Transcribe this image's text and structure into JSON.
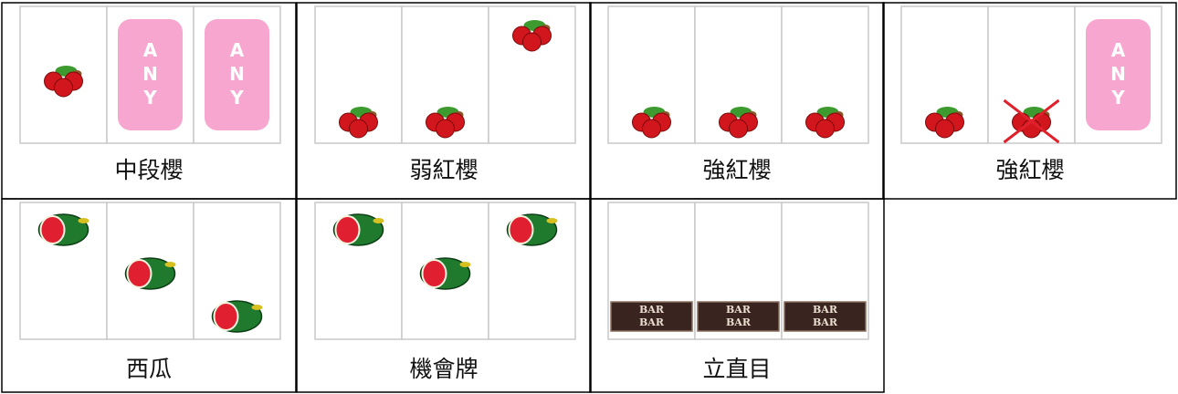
{
  "cells": [
    {
      "label": "中段櫻"
    },
    {
      "label": "弱紅櫻"
    },
    {
      "label": "強紅櫻"
    },
    {
      "label": "強紅櫻"
    },
    {
      "label": "西瓜"
    },
    {
      "label": "機會牌"
    },
    {
      "label": "立直目"
    }
  ],
  "symbols": {
    "any": "ANY",
    "bar": "BAR"
  }
}
